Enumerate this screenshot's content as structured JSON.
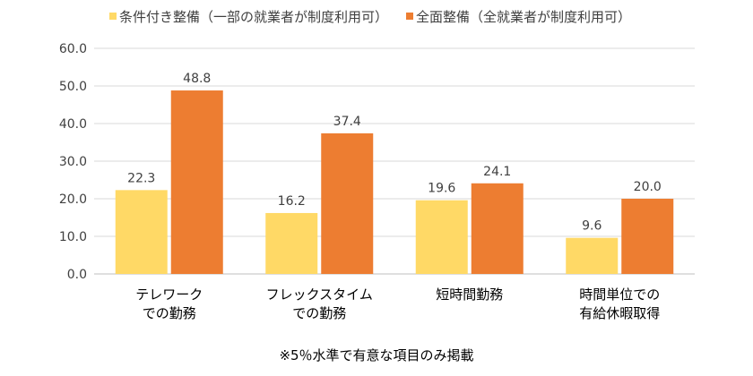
{
  "chart_data": {
    "type": "bar",
    "categories": [
      [
        "テレワーク",
        "での勤務"
      ],
      [
        "フレックスタイム",
        "での勤務"
      ],
      [
        "短時間勤務"
      ],
      [
        "時間単位での",
        "有給休暇取得"
      ]
    ],
    "series": [
      {
        "name": "条件付き整備（一部の就業者が制度利用可）",
        "color": "#FFD966",
        "values": [
          22.3,
          16.2,
          19.6,
          9.6
        ]
      },
      {
        "name": "全面整備（全就業者が制度利用可）",
        "color": "#ED7D31",
        "values": [
          48.8,
          37.4,
          24.1,
          20.0
        ]
      }
    ],
    "yticks": [
      "0.0",
      "10.0",
      "20.0",
      "30.0",
      "40.0",
      "50.0",
      "60.0"
    ],
    "ylim": [
      0,
      60
    ],
    "grid": true,
    "legend": "top",
    "note": "※5％水準で有意な項目のみ掲載"
  }
}
